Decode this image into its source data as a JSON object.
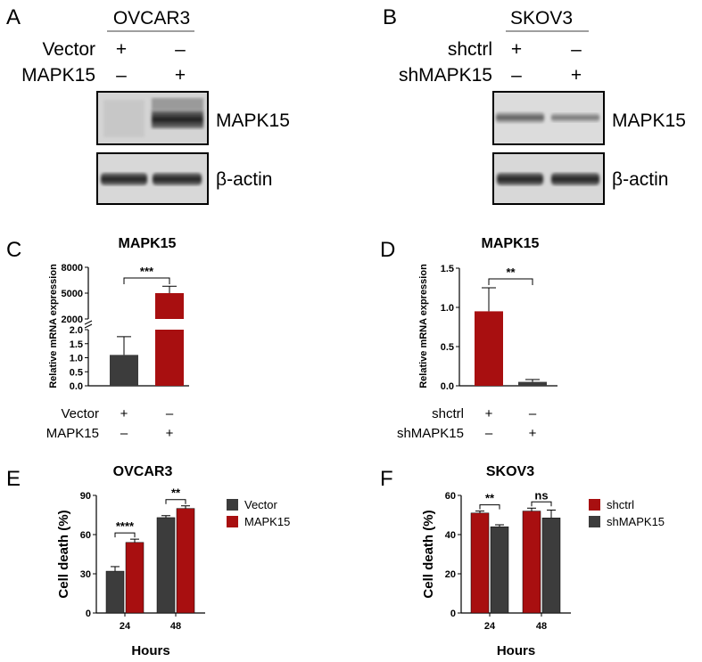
{
  "colors": {
    "red": "#a80f10",
    "dark": "#3c3c3c"
  },
  "panels": {
    "A": {
      "letter": "A",
      "cell_line": "OVCAR3",
      "rows": [
        {
          "label": "Vector",
          "signs": [
            "+",
            "–"
          ]
        },
        {
          "label": "MAPK15",
          "signs": [
            "–",
            "+"
          ]
        }
      ],
      "blots": [
        "MAPK15",
        "β-actin"
      ]
    },
    "B": {
      "letter": "B",
      "cell_line": "SKOV3",
      "rows": [
        {
          "label": "shctrl",
          "signs": [
            "+",
            "–"
          ]
        },
        {
          "label": "shMAPK15",
          "signs": [
            "–",
            "+"
          ]
        }
      ],
      "blots": [
        "MAPK15",
        "β-actin"
      ]
    },
    "C": {
      "letter": "C",
      "rows": [
        {
          "label": "Vector",
          "signs": [
            "+",
            "–"
          ]
        },
        {
          "label": "MAPK15",
          "signs": [
            "–",
            "+"
          ]
        }
      ]
    },
    "D": {
      "letter": "D",
      "rows": [
        {
          "label": "shctrl",
          "signs": [
            "+",
            "–"
          ]
        },
        {
          "label": "shMAPK15",
          "signs": [
            "–",
            "+"
          ]
        }
      ]
    },
    "E": {
      "letter": "E"
    },
    "F": {
      "letter": "F"
    }
  },
  "chart_data": [
    {
      "panel": "C",
      "type": "bar",
      "title": "MAPK15",
      "ylabel": "Relative mRNA expression",
      "y_axis": "broken",
      "y_segments": [
        {
          "range": [
            0,
            2.0
          ],
          "ticks": [
            "0.0",
            "0.5",
            "1.0",
            "1.5",
            "2.0"
          ]
        },
        {
          "range": [
            2000,
            8000
          ],
          "ticks": [
            "2000",
            "5000",
            "8000"
          ]
        }
      ],
      "categories": [
        "Vector",
        "MAPK15"
      ],
      "values": [
        1.1,
        5000
      ],
      "errors": [
        0.65,
        800
      ],
      "bar_colors": [
        "#3c3c3c",
        "#a80f10"
      ],
      "significance": [
        {
          "between": [
            0,
            1
          ],
          "label": "***"
        }
      ]
    },
    {
      "panel": "D",
      "type": "bar",
      "title": "MAPK15",
      "ylabel": "Relative mRNA expression",
      "ylim": [
        0,
        1.5
      ],
      "yticks": [
        "0.0",
        "0.5",
        "1.0",
        "1.5"
      ],
      "categories": [
        "shctrl",
        "shMAPK15"
      ],
      "values": [
        0.95,
        0.05
      ],
      "errors": [
        0.3,
        0.03
      ],
      "bar_colors": [
        "#a80f10",
        "#3c3c3c"
      ],
      "significance": [
        {
          "between": [
            0,
            1
          ],
          "label": "**"
        }
      ]
    },
    {
      "panel": "E",
      "type": "bar",
      "title": "OVCAR3",
      "xlabel": "Hours",
      "ylabel": "Cell death (%)",
      "ylim": [
        0,
        90
      ],
      "yticks": [
        "0",
        "30",
        "60",
        "90"
      ],
      "categories": [
        "24",
        "48"
      ],
      "series": [
        {
          "name": "Vector",
          "color": "#3c3c3c",
          "values": [
            32,
            73
          ],
          "errors": [
            3.5,
            1.5
          ]
        },
        {
          "name": "MAPK15",
          "color": "#a80f10",
          "values": [
            54,
            80
          ],
          "errors": [
            2.5,
            2.0
          ]
        }
      ],
      "significance": [
        {
          "category": "24",
          "label": "****"
        },
        {
          "category": "48",
          "label": "**"
        }
      ],
      "legend": "right"
    },
    {
      "panel": "F",
      "type": "bar",
      "title": "SKOV3",
      "xlabel": "Hours",
      "ylabel": "Cell death (%)",
      "ylim": [
        0,
        60
      ],
      "yticks": [
        "0",
        "20",
        "40",
        "60"
      ],
      "categories": [
        "24",
        "48"
      ],
      "series": [
        {
          "name": "shctrl",
          "color": "#a80f10",
          "values": [
            51,
            52
          ],
          "errors": [
            1.0,
            1.5
          ]
        },
        {
          "name": "shMAPK15",
          "color": "#3c3c3c",
          "values": [
            44,
            48.5
          ],
          "errors": [
            1.0,
            4.0
          ]
        }
      ],
      "significance": [
        {
          "category": "24",
          "label": "**"
        },
        {
          "category": "48",
          "label": "ns"
        }
      ],
      "legend": "right"
    }
  ]
}
